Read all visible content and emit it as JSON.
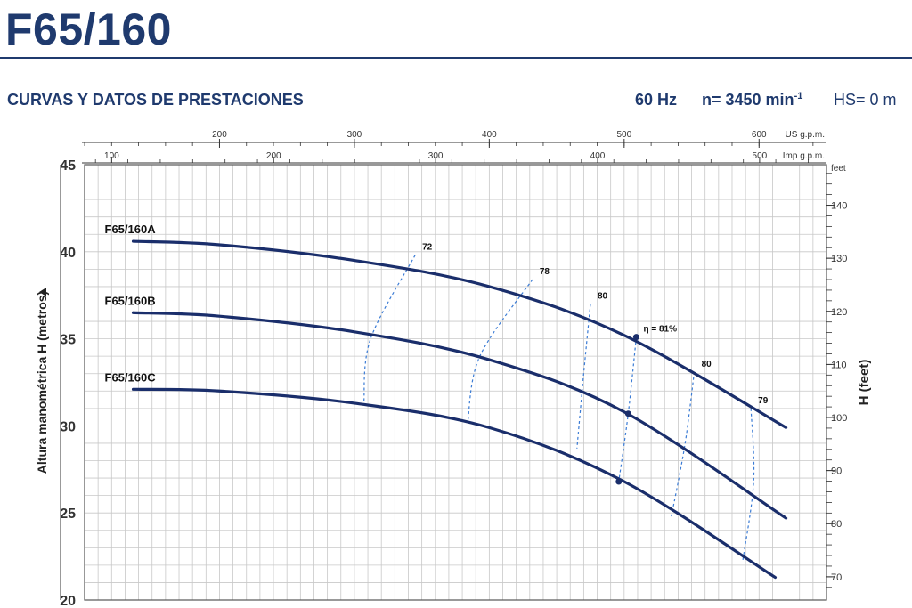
{
  "header": {
    "title": "F65/160",
    "subtitle": "CURVAS Y DATOS DE PRESTACIONES",
    "frequency": "60 Hz",
    "speed_prefix": "n= 3450 min",
    "speed_exp": "-1",
    "hs": "HS= 0 m"
  },
  "colors": {
    "curve": "#1a2e6b",
    "efficiency": "#3a7bd5",
    "grid": "#c8c8c8",
    "axis": "#1f3a6e"
  },
  "chart_data": {
    "type": "line",
    "ylabel": "Altura manométrica H  (metros)",
    "y2label": "H (feet)",
    "y2_unit": "feet",
    "ylim": [
      20,
      45
    ],
    "y_ticks": [
      20,
      25,
      30,
      35,
      40,
      45
    ],
    "y2_ticks": [
      70,
      80,
      90,
      100,
      110,
      120,
      130,
      140
    ],
    "x_top_label": "US g.p.m.",
    "x_top_ticks": [
      200,
      300,
      400,
      500,
      600
    ],
    "x_top_range": [
      100,
      650
    ],
    "x2_label": "Imp g.p.m.",
    "x2_ticks": [
      100,
      200,
      300,
      400,
      500
    ],
    "x2_range": [
      83.3,
      541.3
    ],
    "grid": true,
    "series": [
      {
        "name": "F65/160A",
        "x": [
          136,
          200,
          300,
          400,
          500,
          620
        ],
        "values": [
          40.6,
          40.4,
          39.5,
          38.0,
          35.2,
          29.9
        ]
      },
      {
        "name": "F65/160B",
        "x": [
          136,
          200,
          300,
          400,
          500,
          620
        ],
        "values": [
          36.5,
          36.3,
          35.4,
          33.8,
          30.8,
          24.7
        ]
      },
      {
        "name": "F65/160C",
        "x": [
          136,
          200,
          300,
          400,
          500,
          612
        ],
        "values": [
          32.1,
          32.0,
          31.3,
          29.9,
          26.8,
          21.3
        ]
      }
    ],
    "efficiency_curves": [
      {
        "label": "72",
        "x": [
          345,
          312,
          307
        ],
        "values": [
          39.8,
          35.0,
          31.3
        ]
      },
      {
        "label": "78",
        "x": [
          432,
          393,
          384
        ],
        "values": [
          38.4,
          34.0,
          30.2
        ]
      },
      {
        "label": "80",
        "x": [
          475,
          470,
          465
        ],
        "values": [
          37.0,
          33.0,
          28.7
        ]
      },
      {
        "label": "η = 81%",
        "x": [
          509,
          503,
          496
        ],
        "values": [
          35.1,
          30.7,
          26.8
        ]
      },
      {
        "label": "80",
        "x": [
          552,
          545,
          535
        ],
        "values": [
          33.1,
          28.9,
          24.8
        ]
      },
      {
        "label": "79",
        "x": [
          594,
          596,
          588
        ],
        "values": [
          31.0,
          26.8,
          22.3
        ]
      }
    ],
    "highlight_points": [
      {
        "x": 509,
        "value": 35.1
      },
      {
        "x": 503,
        "value": 30.7
      },
      {
        "x": 496,
        "value": 26.8
      }
    ]
  }
}
